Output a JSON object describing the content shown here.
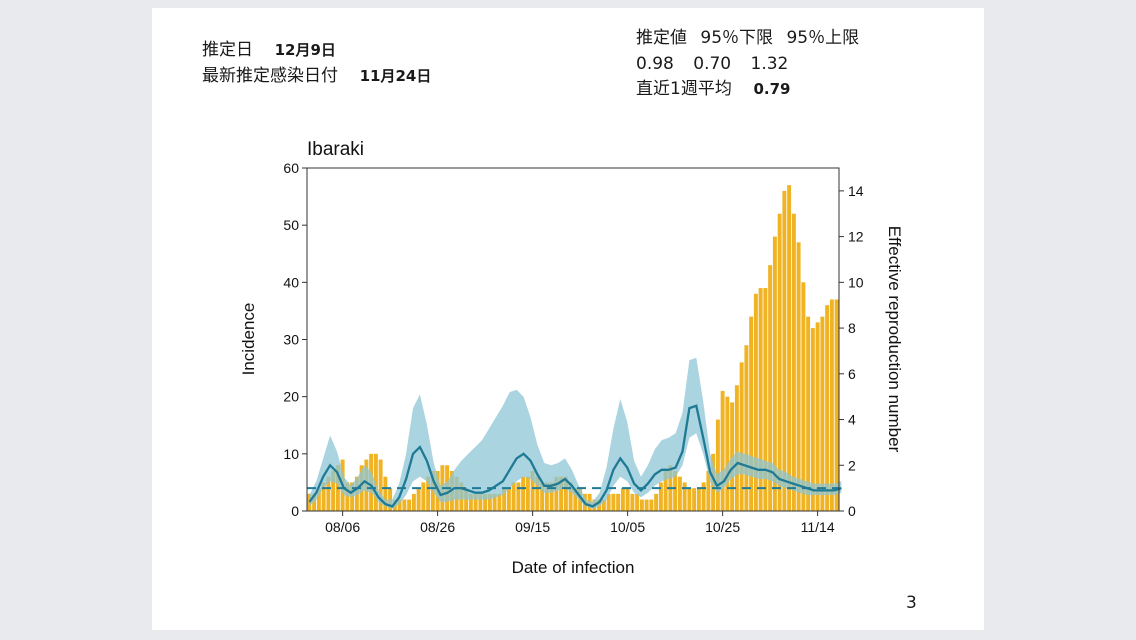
{
  "header": {
    "estimate_date_label": "推定日",
    "estimate_date_value": "12月9日",
    "latest_infection_label": "最新推定感染日付",
    "latest_infection_value": "11月24日",
    "estimate_cols": "推定値 95％下限 95％上限",
    "estimate_vals": "0.98 0.70 1.32",
    "weekly_avg_label": "直近1週平均",
    "weekly_avg_value": "0.79"
  },
  "page_number": "3",
  "chart_data": {
    "type": "bar",
    "title": "Ibaraki",
    "xlabel": "Date of infection",
    "ylabel": "Incidence",
    "y2label": "Effective reproduction number",
    "ylim": [
      0,
      60
    ],
    "y2lim": [
      0,
      15
    ],
    "yticks": [
      "0",
      "10",
      "20",
      "30",
      "40",
      "50",
      "60"
    ],
    "y2ticks": [
      "0",
      "2",
      "4",
      "6",
      "8",
      "10",
      "12",
      "14"
    ],
    "xticks": [
      {
        "label": "08/06",
        "day": 7
      },
      {
        "label": "08/26",
        "day": 27
      },
      {
        "label": "09/15",
        "day": 47
      },
      {
        "label": "10/05",
        "day": 67
      },
      {
        "label": "10/25",
        "day": 87
      },
      {
        "label": "11/14",
        "day": 107
      }
    ],
    "colors": {
      "bars": "#f0b323",
      "ci": "#8ec5d6",
      "line": "#1f7a96",
      "frame": "#333333"
    },
    "incidence": [
      3,
      3,
      4,
      5,
      6,
      7,
      8,
      9,
      5,
      5,
      6,
      8,
      9,
      10,
      10,
      9,
      6,
      4,
      2,
      2,
      2,
      2,
      3,
      4,
      5,
      6,
      7,
      7,
      8,
      8,
      7,
      6,
      5,
      4,
      3,
      3,
      3,
      3,
      3,
      3,
      3,
      4,
      4,
      5,
      5,
      6,
      6,
      7,
      6,
      5,
      5,
      5,
      6,
      6,
      6,
      5,
      4,
      4,
      3,
      3,
      2,
      2,
      2,
      3,
      3,
      3,
      4,
      4,
      3,
      3,
      2,
      2,
      2,
      3,
      5,
      7,
      8,
      7,
      6,
      5,
      4,
      4,
      4,
      5,
      7,
      10,
      16,
      21,
      20,
      19,
      22,
      26,
      29,
      34,
      38,
      39,
      39,
      43,
      48,
      52,
      56,
      57,
      52,
      47,
      40,
      34,
      32,
      33,
      34,
      36,
      37,
      37
    ],
    "rt": [
      0.4,
      0.8,
      1.5,
      2.0,
      1.7,
      1.0,
      0.8,
      1.0,
      1.3,
      1.1,
      0.6,
      0.3,
      0.2,
      0.6,
      1.4,
      2.5,
      2.8,
      2.2,
      1.3,
      0.7,
      0.8,
      1.0,
      1.0,
      0.9,
      0.8,
      0.8,
      0.9,
      1.1,
      1.3,
      1.8,
      2.3,
      2.5,
      2.2,
      1.6,
      1.1,
      1.1,
      1.2,
      1.4,
      1.1,
      0.7,
      0.3,
      0.2,
      0.4,
      0.9,
      1.8,
      2.3,
      1.9,
      1.2,
      0.9,
      1.2,
      1.6,
      1.8,
      1.8,
      1.9,
      2.6,
      4.5,
      4.6,
      3.2,
      1.7,
      1.1,
      1.3,
      1.8,
      2.1,
      2.0,
      1.9,
      1.8,
      1.8,
      1.7,
      1.4,
      1.3,
      1.2,
      1.1,
      1.0,
      0.9,
      0.9,
      0.9,
      0.9,
      1.0
    ],
    "rt_start_day": 0,
    "rt_lower": [
      0.2,
      0.5,
      1.0,
      1.3,
      1.2,
      0.7,
      0.6,
      0.7,
      0.9,
      0.8,
      0.4,
      0.2,
      0.1,
      0.3,
      0.7,
      1.3,
      1.5,
      1.3,
      0.8,
      0.4,
      0.4,
      0.5,
      0.5,
      0.5,
      0.5,
      0.5,
      0.5,
      0.6,
      0.7,
      1.0,
      1.3,
      1.5,
      1.4,
      1.1,
      0.8,
      0.8,
      0.9,
      1.0,
      0.8,
      0.5,
      0.2,
      0.1,
      0.2,
      0.5,
      1.1,
      1.5,
      1.3,
      0.8,
      0.6,
      0.8,
      1.1,
      1.3,
      1.4,
      1.5,
      2.0,
      3.2,
      3.4,
      2.5,
      1.3,
      0.8,
      1.0,
      1.4,
      1.6,
      1.6,
      1.5,
      1.4,
      1.4,
      1.3,
      1.1,
      1.0,
      0.9,
      0.8,
      0.7,
      0.7,
      0.7,
      0.7,
      0.7,
      0.8
    ],
    "rt_upper": [
      0.7,
      1.3,
      2.3,
      3.3,
      2.6,
      1.5,
      1.1,
      1.5,
      2.0,
      1.7,
      0.9,
      0.5,
      0.5,
      1.2,
      2.5,
      4.5,
      5.1,
      3.8,
      2.1,
      1.1,
      1.3,
      1.8,
      2.2,
      2.5,
      2.8,
      3.1,
      3.6,
      4.1,
      4.6,
      5.2,
      5.3,
      5.0,
      4.1,
      2.9,
      2.1,
      2.0,
      2.1,
      2.3,
      1.8,
      1.1,
      0.5,
      0.4,
      0.8,
      1.9,
      3.6,
      4.9,
      3.9,
      2.2,
      1.5,
      2.0,
      2.7,
      3.1,
      3.2,
      3.4,
      4.3,
      6.6,
      6.7,
      4.8,
      2.5,
      1.6,
      1.8,
      2.3,
      2.6,
      2.5,
      2.4,
      2.3,
      2.2,
      2.1,
      1.8,
      1.7,
      1.5,
      1.4,
      1.3,
      1.2,
      1.2,
      1.2,
      1.2,
      1.3
    ],
    "reference_line": 1.0
  }
}
